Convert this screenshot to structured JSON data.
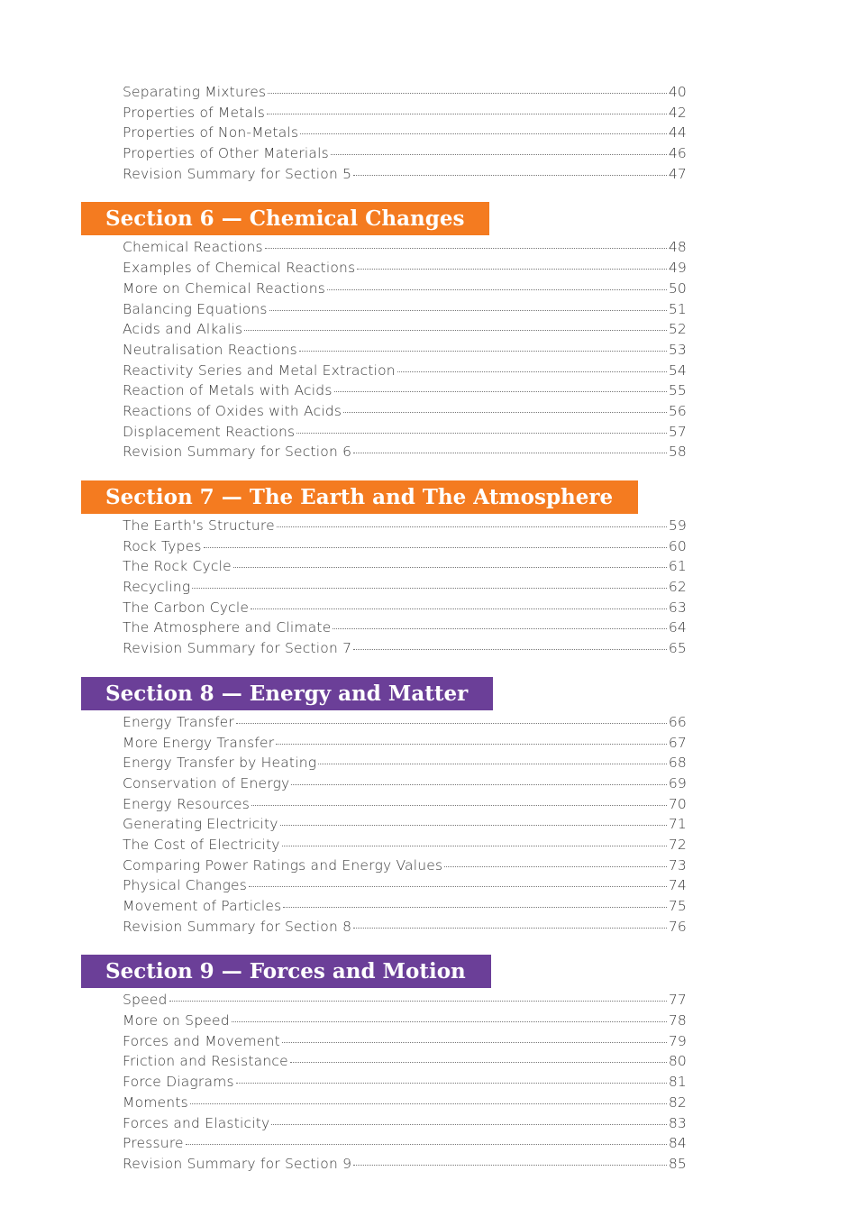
{
  "intro": {
    "entries": [
      {
        "title": "Separating Mixtures",
        "page": 40
      },
      {
        "title": "Properties of Metals",
        "page": 42
      },
      {
        "title": "Properties of Non-Metals",
        "page": 44
      },
      {
        "title": "Properties of Other Materials",
        "page": 46
      },
      {
        "title": "Revision Summary for Section 5",
        "page": 47
      }
    ]
  },
  "sections": [
    {
      "heading": "Section 6 — Chemical Changes",
      "entries": [
        {
          "title": "Chemical Reactions",
          "page": 48
        },
        {
          "title": "Examples of Chemical Reactions",
          "page": 49
        },
        {
          "title": "More on Chemical Reactions",
          "page": 50
        },
        {
          "title": "Balancing Equations",
          "page": 51
        },
        {
          "title": "Acids and Alkalis",
          "page": 52
        },
        {
          "title": "Neutralisation Reactions",
          "page": 53
        },
        {
          "title": "Reactivity Series and Metal Extraction",
          "page": 54
        },
        {
          "title": "Reaction of Metals with Acids",
          "page": 55
        },
        {
          "title": "Reactions of Oxides with Acids",
          "page": 56
        },
        {
          "title": "Displacement Reactions",
          "page": 57
        },
        {
          "title": "Revision Summary for Section 6",
          "page": 58
        }
      ]
    },
    {
      "heading": "Section 7 — The Earth and The Atmosphere",
      "entries": [
        {
          "title": "The Earth's Structure",
          "page": 59
        },
        {
          "title": "Rock Types",
          "page": 60
        },
        {
          "title": "The Rock Cycle",
          "page": 61
        },
        {
          "title": "Recycling",
          "page": 62
        },
        {
          "title": "The Carbon Cycle",
          "page": 63
        },
        {
          "title": "The Atmosphere and Climate",
          "page": 64
        },
        {
          "title": "Revision Summary for Section 7",
          "page": 65
        }
      ]
    },
    {
      "heading": "Section 8 — Energy and Matter",
      "entries": [
        {
          "title": "Energy Transfer",
          "page": 66
        },
        {
          "title": "More Energy Transfer",
          "page": 67
        },
        {
          "title": "Energy Transfer by Heating",
          "page": 68
        },
        {
          "title": "Conservation of Energy",
          "page": 69
        },
        {
          "title": "Energy Resources",
          "page": 70
        },
        {
          "title": "Generating Electricity",
          "page": 71
        },
        {
          "title": "The Cost of Electricity",
          "page": 72
        },
        {
          "title": "Comparing Power Ratings and Energy Values",
          "page": 73
        },
        {
          "title": "Physical Changes",
          "page": 74
        },
        {
          "title": "Movement of Particles",
          "page": 75
        },
        {
          "title": "Revision Summary for Section 8",
          "page": 76
        }
      ]
    },
    {
      "heading": "Section 9 — Forces and Motion",
      "entries": [
        {
          "title": "Speed",
          "page": 77
        },
        {
          "title": "More on Speed",
          "page": 78
        },
        {
          "title": "Forces and Movement",
          "page": 79
        },
        {
          "title": "Friction and Resistance",
          "page": 80
        },
        {
          "title": "Force Diagrams",
          "page": 81
        },
        {
          "title": "Moments",
          "page": 82
        },
        {
          "title": "Forces and Elasticity",
          "page": 83
        },
        {
          "title": "Pressure",
          "page": 84
        },
        {
          "title": "Revision Summary for Section 9",
          "page": 85
        }
      ]
    }
  ]
}
